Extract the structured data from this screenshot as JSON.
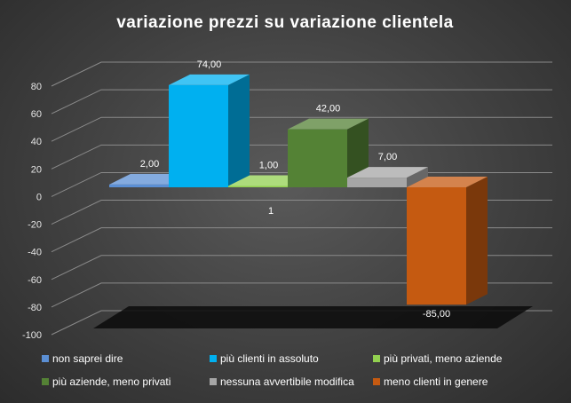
{
  "chart_data": {
    "type": "bar",
    "title": "variazione  prezzi  su  variazione  clientela",
    "categories": [
      "1"
    ],
    "series": [
      {
        "name": "non saprei dire",
        "values": [
          2.0
        ],
        "label": "2,00",
        "color": "#5b8fd4"
      },
      {
        "name": "più clienti in assoluto",
        "values": [
          74.0
        ],
        "label": "74,00",
        "color": "#00b0f0"
      },
      {
        "name": "più privati, meno aziende",
        "values": [
          1.0
        ],
        "label": "1,00",
        "color": "#92d050"
      },
      {
        "name": "più aziende, meno privati",
        "values": [
          42.0
        ],
        "label": "42,00",
        "color": "#548235"
      },
      {
        "name": "nessuna avvertibile modifica",
        "values": [
          7.0
        ],
        "label": "7,00",
        "color": "#a6a6a6"
      },
      {
        "name": "meno clienti in genere",
        "values": [
          -85.0
        ],
        "label": "-85,00",
        "color": "#c55a11"
      }
    ],
    "y_ticks": [
      "80",
      "60",
      "40",
      "20",
      "0",
      "-20",
      "-40",
      "-60",
      "-80",
      "-100"
    ],
    "ylim": [
      -100,
      80
    ],
    "grid": true,
    "legend": "bottom",
    "xlabel": "",
    "ylabel": ""
  }
}
